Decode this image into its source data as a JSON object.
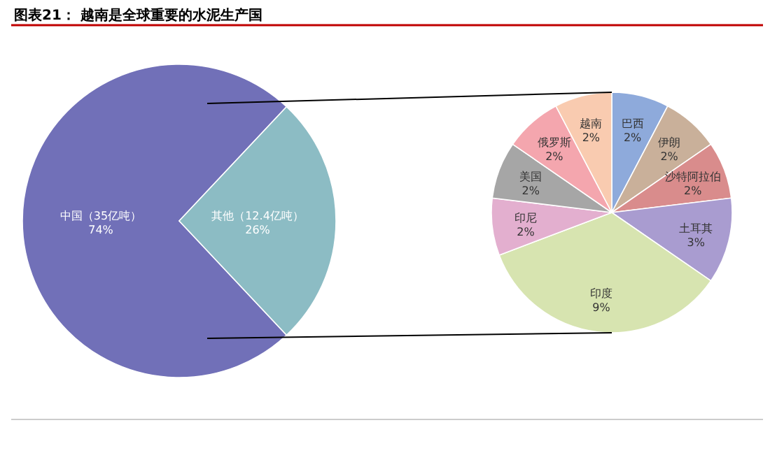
{
  "chart_data": [
    {
      "type": "pie",
      "title": "图表21： 越南是全球重要的水泥生产国",
      "categories": [
        "中国（35亿吨）",
        "其他（12.4亿吨）"
      ],
      "values": [
        74,
        26
      ],
      "value_labels": [
        "74%",
        "26%"
      ],
      "colors": [
        "#7170b8",
        "#8cbcc4"
      ]
    },
    {
      "type": "pie",
      "categories": [
        "巴西",
        "伊朗",
        "沙特阿拉伯",
        "土耳其",
        "印度",
        "印尼",
        "美国",
        "俄罗斯",
        "越南"
      ],
      "values": [
        2,
        2,
        2,
        3,
        9,
        2,
        2,
        2,
        2
      ],
      "value_labels": [
        "2%",
        "2%",
        "2%",
        "3%",
        "9%",
        "2%",
        "2%",
        "2%",
        "2%"
      ],
      "colors": [
        "#8eaadb",
        "#c9b09a",
        "#d98c8c",
        "#a99cd0",
        "#d7e4b0",
        "#e3afcf",
        "#a6a6a6",
        "#f4a6ae",
        "#f9cbb0"
      ]
    }
  ]
}
